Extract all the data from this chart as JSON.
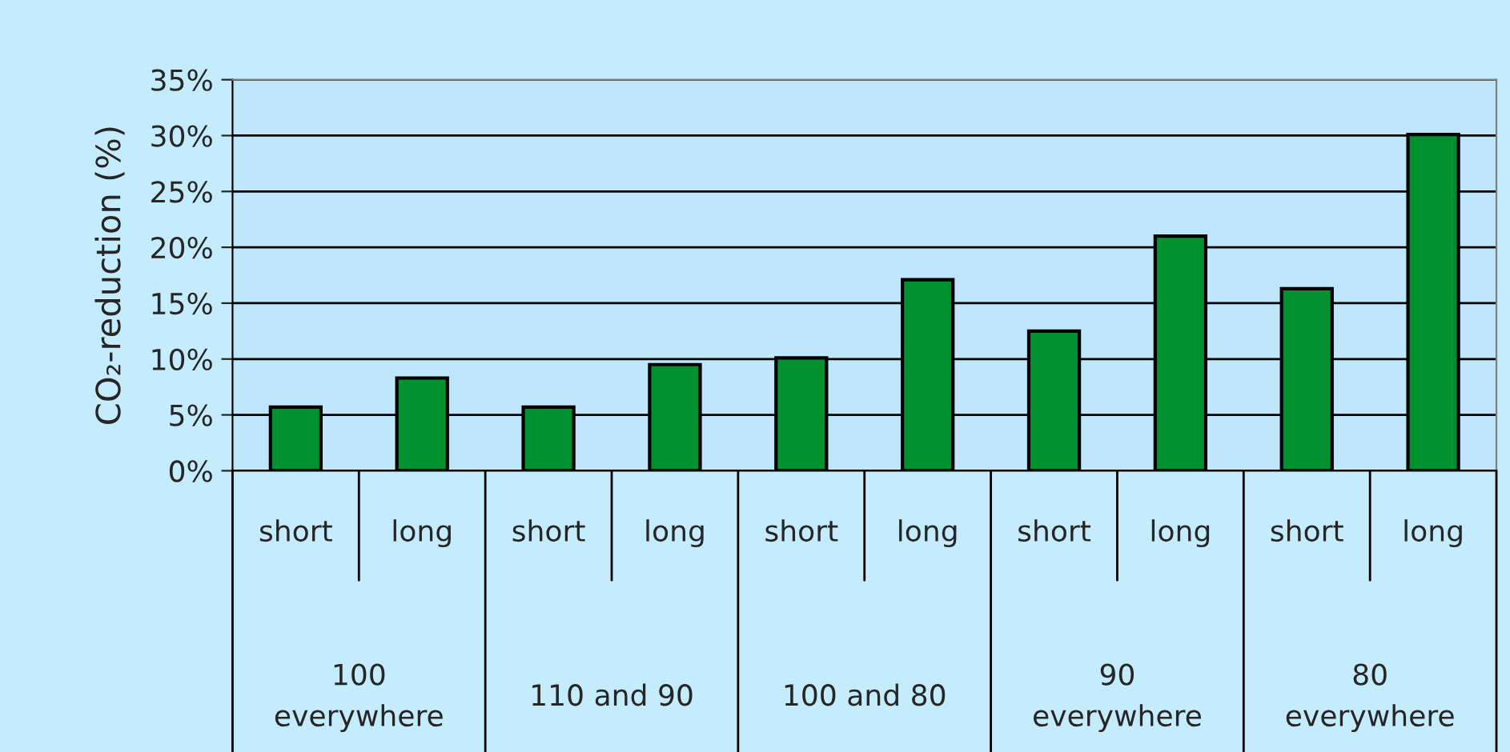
{
  "chart_data": {
    "type": "bar",
    "ylabel": "CO₂-reduction (%)",
    "categories": [
      "short",
      "long",
      "short",
      "long",
      "short",
      "long",
      "short",
      "long",
      "short",
      "long"
    ],
    "values": [
      5.7,
      8.3,
      5.7,
      9.5,
      10.1,
      17.1,
      12.5,
      21.0,
      16.3,
      30.1
    ],
    "color": "#009030",
    "ylim": [
      0,
      35
    ],
    "yticks": [
      {
        "value": 0,
        "label": "0%"
      },
      {
        "value": 5,
        "label": "5%"
      },
      {
        "value": 10,
        "label": "10%"
      },
      {
        "value": 15,
        "label": "15%"
      },
      {
        "value": 20,
        "label": "20%"
      },
      {
        "value": 25,
        "label": "25%"
      },
      {
        "value": 30,
        "label": "30%"
      },
      {
        "value": 35,
        "label": "35%"
      }
    ],
    "grid": "y",
    "annotations": [
      "100\neverywhere",
      "110 and 90",
      "100 and 80",
      "90\neverywhere",
      "80\neverywhere"
    ]
  }
}
